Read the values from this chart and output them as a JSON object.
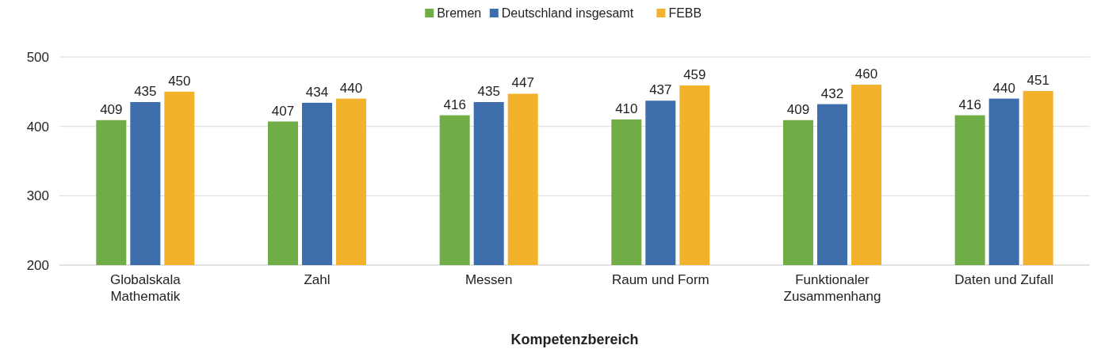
{
  "chart_data": {
    "type": "bar",
    "xlabel": "Kompetenzbereich",
    "categories": [
      "Globalskala Mathematik",
      "Zahl",
      "Messen",
      "Raum und Form",
      "Funktionaler Zusammenhang",
      "Daten und Zufall"
    ],
    "series": [
      {
        "name": "Bremen",
        "color": "#70ad47",
        "values": [
          409,
          407,
          416,
          410,
          409,
          416
        ]
      },
      {
        "name": "Deutschland insgesamt",
        "color": "#3d6eab",
        "values": [
          435,
          434,
          435,
          437,
          432,
          440
        ]
      },
      {
        "name": "FEBB",
        "color": "#f2b22c",
        "values": [
          450,
          440,
          447,
          459,
          460,
          451
        ]
      }
    ],
    "ylim": [
      200,
      500
    ],
    "yticks": [
      200,
      300,
      400,
      500
    ],
    "grid": "y",
    "legend": "top",
    "data_labels": true
  }
}
